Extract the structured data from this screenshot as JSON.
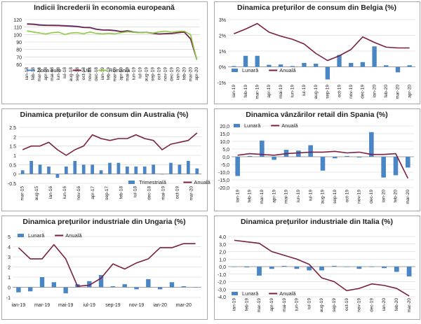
{
  "colors": {
    "zona_euro": "#4a86c5",
    "ue": "#7a1f43",
    "romania": "#8fc944",
    "bar": "#4a86c5",
    "line": "#7a1f43",
    "grid": "#d0d0d0",
    "border": "#a8a8a8"
  },
  "chart_data": [
    {
      "id": "c1",
      "type": "line",
      "title": "Indicii încrederii în economia europeană",
      "ylim": [
        60,
        120
      ],
      "yticks": [
        60,
        70,
        80,
        90,
        100,
        110,
        120
      ],
      "categories": [
        "ian-18",
        "feb-18",
        "mar-18",
        "apr-18",
        "mai-18",
        "iun-18",
        "iul-18",
        "aug-18",
        "sep-18",
        "oct-18",
        "nov-18",
        "dec-18",
        "ian-19",
        "feb-19",
        "mar-19",
        "apr-19",
        "mai-19",
        "iun-19",
        "iul-19",
        "aug-19",
        "sep-19",
        "oct-19",
        "nov-19",
        "dec-19",
        "ian-20",
        "feb-20",
        "mar-20",
        "apr-20"
      ],
      "xtick_labels": [
        "ian-18",
        "feb-18",
        "mar-18",
        "apr-18",
        "mai-18",
        "iun-18",
        "iul-18",
        "aug-18",
        "sep-18",
        "oct-18",
        "nov-18",
        "dec-18",
        "ian-19",
        "feb-19",
        "mar-19",
        "apr-19",
        "mai-19",
        "iun-19",
        "iul-19",
        "aug-19",
        "sep-19",
        "oct-19",
        "nov-19",
        "dec-19",
        "ian-20",
        "feb-20",
        "mar-20",
        "apr-20"
      ],
      "series": [
        {
          "name": "Zona euro",
          "kind": "line",
          "values": [
            114.5,
            114.1,
            113.2,
            112.7,
            112.6,
            112.5,
            112.0,
            111.6,
            111.0,
            109.8,
            109.6,
            107.4,
            106.3,
            106.2,
            105.5,
            104.0,
            105.1,
            103.3,
            102.7,
            103.1,
            101.7,
            100.8,
            101.3,
            101.5,
            102.6,
            103.4,
            94.5,
            67.0
          ]
        },
        {
          "name": "UE",
          "kind": "line",
          "values": [
            114.0,
            113.6,
            112.6,
            112.2,
            112.1,
            112.0,
            111.5,
            111.1,
            110.6,
            109.4,
            109.2,
            107.0,
            106.0,
            105.9,
            105.2,
            103.8,
            104.8,
            103.1,
            102.5,
            102.9,
            101.5,
            100.6,
            101.1,
            101.3,
            102.4,
            103.2,
            94.2,
            66.2
          ]
        },
        {
          "name": "Romania",
          "kind": "line",
          "values": [
            104.8,
            103.3,
            102.0,
            100.8,
            102.5,
            103.2,
            100.1,
            102.0,
            102.5,
            101.0,
            103.4,
            101.5,
            100.8,
            101.5,
            101.0,
            102.5,
            103.8,
            102.8,
            102.5,
            103.0,
            102.0,
            103.5,
            104.5,
            103.0,
            104.2,
            104.5,
            100.0,
            66.0
          ]
        }
      ],
      "legend": [
        "Zona euro",
        "UE",
        "Romania"
      ]
    },
    {
      "id": "c2",
      "type": "bar+line",
      "title": "Dinamica prețurilor de consum din Belgia (%)",
      "ylim": [
        -1,
        3
      ],
      "yticks": [
        -1,
        0,
        1,
        2,
        3
      ],
      "ytick_labels": [
        "-1%",
        "0%",
        "1%",
        "2%",
        "3%"
      ],
      "categories": [
        "ian-19",
        "feb-19",
        "mar-19",
        "apr-19",
        "mai-19",
        "iun-19",
        "iul-19",
        "aug-19",
        "sep-19",
        "oct-19",
        "nov-19",
        "dec-19",
        "ian-20",
        "feb-20",
        "mar-20",
        "apr-20"
      ],
      "xtick_labels": [
        "ian-19",
        "feb-19",
        "mar-19",
        "apr-19",
        "mai-19",
        "iun-19",
        "iul-19",
        "aug-19",
        "sep-19",
        "oct-19",
        "nov-19",
        "dec-19",
        "ian-20",
        "feb-20",
        "mar-20",
        "apr-20"
      ],
      "series": [
        {
          "name": "Lunară",
          "kind": "bar",
          "values": [
            0.05,
            0.7,
            0.7,
            0.13,
            0.15,
            0.05,
            0.25,
            0.2,
            -0.8,
            0.75,
            0.25,
            0.3,
            1.3,
            0.1,
            -0.35,
            0.1
          ]
        },
        {
          "name": "Anuală",
          "kind": "line",
          "values": [
            2.1,
            2.4,
            2.75,
            2.2,
            1.95,
            1.75,
            1.45,
            0.85,
            0.4,
            0.7,
            1.1,
            1.9,
            1.55,
            1.25,
            1.2,
            1.2
          ]
        }
      ],
      "legend": [
        "Lunară",
        "Anuală"
      ]
    },
    {
      "id": "c3",
      "type": "bar+line",
      "title": "Dinamica prețurilor de consum din Australia (%)",
      "ylim": [
        -0.5,
        2.5
      ],
      "yticks": [
        -0.5,
        0,
        0.5,
        1,
        1.5,
        2,
        2.5
      ],
      "categories": [
        "mar-15",
        "iun-15",
        "sep-15",
        "dec-15",
        "mar-16",
        "iun-16",
        "sep-16",
        "dec-16",
        "mar-17",
        "iun-17",
        "sep-17",
        "dec-17",
        "mar-18",
        "iun-18",
        "sep-18",
        "dec-18",
        "mar-19",
        "iun-19",
        "sep-19",
        "dec-19",
        "mar-20"
      ],
      "xtick_labels": [
        "mar-15",
        "aug-15",
        "ian-16",
        "iun-16",
        "nov-16",
        "apr-17",
        "sep-17",
        "feb-18",
        "iul-18",
        "dec-18",
        "mai-19",
        "oct-19",
        "mar-20"
      ],
      "series": [
        {
          "name": "Trimestrială",
          "kind": "bar",
          "values": [
            0.2,
            0.7,
            0.5,
            0.4,
            -0.2,
            0.4,
            0.7,
            0.5,
            0.5,
            0.2,
            0.6,
            0.6,
            0.4,
            0.4,
            0.4,
            0.5,
            0.0,
            0.6,
            0.5,
            0.7,
            0.3
          ]
        },
        {
          "name": "Anuală",
          "kind": "line",
          "values": [
            1.3,
            1.5,
            1.5,
            1.7,
            1.3,
            1.0,
            1.3,
            1.5,
            2.1,
            1.9,
            1.8,
            1.9,
            1.9,
            2.1,
            1.9,
            1.8,
            1.3,
            1.6,
            1.7,
            1.8,
            2.2
          ]
        }
      ],
      "legend": [
        "Trimestrială",
        "Anuală"
      ]
    },
    {
      "id": "c4",
      "type": "bar+line",
      "title": "Dinamica vânzărilor retail din Spania (%)",
      "ylim": [
        -20,
        20
      ],
      "yticks": [
        -20,
        -15,
        -10,
        -5,
        0,
        5,
        10,
        15,
        20
      ],
      "ytick_labels": [
        "-20,0",
        "-15,0",
        "-10,0",
        "-5,0",
        "0,0",
        "5,0",
        "10,0",
        "15,0",
        "20,0"
      ],
      "categories": [
        "ian-19",
        "feb-19",
        "mar-19",
        "apr-19",
        "mai-19",
        "iun-19",
        "iul-19",
        "aug-19",
        "sep-19",
        "oct-19",
        "nov-19",
        "dec-19",
        "ian-20",
        "feb-20",
        "mar-20"
      ],
      "xtick_labels": [
        "ian-19",
        "feb-19",
        "mar-19",
        "apr-19",
        "mai-19",
        "iun-19",
        "iul-19",
        "aug-19",
        "sep-19",
        "oct-19",
        "nov-19",
        "dec-19",
        "ian-20",
        "feb-20",
        "mar-20"
      ],
      "series": [
        {
          "name": "Lunară",
          "kind": "bar",
          "values": [
            -12.5,
            0.5,
            10.5,
            -2.0,
            4.5,
            4.0,
            7.5,
            -9.0,
            -1.0,
            0.5,
            -0.5,
            16.0,
            -13.5,
            -12.0,
            -7.0
          ]
        },
        {
          "name": "Anuală",
          "kind": "line",
          "values": [
            1.0,
            2.0,
            1.5,
            1.0,
            2.0,
            2.5,
            3.0,
            3.0,
            3.5,
            2.5,
            3.0,
            1.5,
            1.5,
            2.0,
            -14.0
          ]
        }
      ],
      "legend": [
        "Lunară",
        "Anuală"
      ]
    },
    {
      "id": "c5",
      "type": "bar+line",
      "title": "Dinamica prețurilor industriale din Ungaria (%)",
      "ylim": [
        -1,
        5
      ],
      "yticks": [
        -1,
        0,
        1,
        2,
        3,
        4,
        5
      ],
      "categories": [
        "ian-19",
        "feb-19",
        "mar-19",
        "apr-19",
        "mai-19",
        "iun-19",
        "iul-19",
        "aug-19",
        "sep-19",
        "oct-19",
        "nov-19",
        "dec-19",
        "ian-20",
        "feb-20",
        "mar-20",
        "apr-20"
      ],
      "xtick_labels": [
        "ian-19",
        "",
        "mar-19",
        "",
        "mai-19",
        "",
        "iul-19",
        "",
        "sep-19",
        "",
        "nov-19",
        "",
        "ian-20",
        "",
        "mar-20",
        ""
      ],
      "series": [
        {
          "name": "Lunară",
          "kind": "bar",
          "values": [
            -0.5,
            -0.4,
            1.0,
            0.5,
            -0.6,
            0.3,
            0.6,
            1.2,
            0.1,
            0.3,
            -0.2,
            0.8,
            -0.2,
            0.5,
            0.1,
            0.0
          ]
        },
        {
          "name": "Anuală",
          "kind": "line",
          "values": [
            3.9,
            2.8,
            2.8,
            4.2,
            2.8,
            0.1,
            0.2,
            0.9,
            2.3,
            1.8,
            2.4,
            2.8,
            3.9,
            3.9,
            4.3,
            4.3
          ]
        }
      ],
      "legend": [
        "Lunară",
        "Anuală"
      ]
    },
    {
      "id": "c6",
      "type": "bar+line",
      "title": "Dinamica prețurilor industriale din Italia (%)",
      "ylim": [
        -4,
        4
      ],
      "yticks": [
        -4,
        -3,
        -2,
        -1,
        0,
        1,
        2,
        3,
        4
      ],
      "ytick_labels": [
        "-4,0",
        "-3,0",
        "-2,0",
        "-1,0",
        "0,0",
        "1,0",
        "2,0",
        "3,0",
        "4,0"
      ],
      "categories": [
        "ian-19",
        "feb-19",
        "mar-19",
        "apr-19",
        "mai-19",
        "iun-19",
        "iul-19",
        "aug-19",
        "sep-19",
        "oct-19",
        "nov-19",
        "dec-19",
        "ian-20",
        "feb-20",
        "mar-20"
      ],
      "xtick_labels": [
        "ian-19",
        "feb-19",
        "mar-19",
        "apr-19",
        "mai-19",
        "iun-19",
        "iul-19",
        "aug-19",
        "sep-19",
        "oct-19",
        "nov-19",
        "dec-19",
        "ian-20",
        "feb-20",
        "mar-20"
      ],
      "series": [
        {
          "name": "Lunară",
          "kind": "bar",
          "values": [
            0.0,
            -0.1,
            -1.2,
            -0.3,
            0.1,
            -0.3,
            -0.5,
            -0.5,
            0.1,
            0.0,
            -0.3,
            0.0,
            -0.2,
            -0.7,
            -1.3
          ]
        },
        {
          "name": "Anuală",
          "kind": "line",
          "values": [
            3.5,
            3.3,
            3.1,
            2.0,
            1.5,
            1.0,
            0.3,
            -1.5,
            -2.0,
            -3.2,
            -2.9,
            -2.3,
            -2.5,
            -2.9,
            -3.9
          ]
        }
      ],
      "legend": [
        "Lunară",
        "Anuală"
      ]
    }
  ]
}
